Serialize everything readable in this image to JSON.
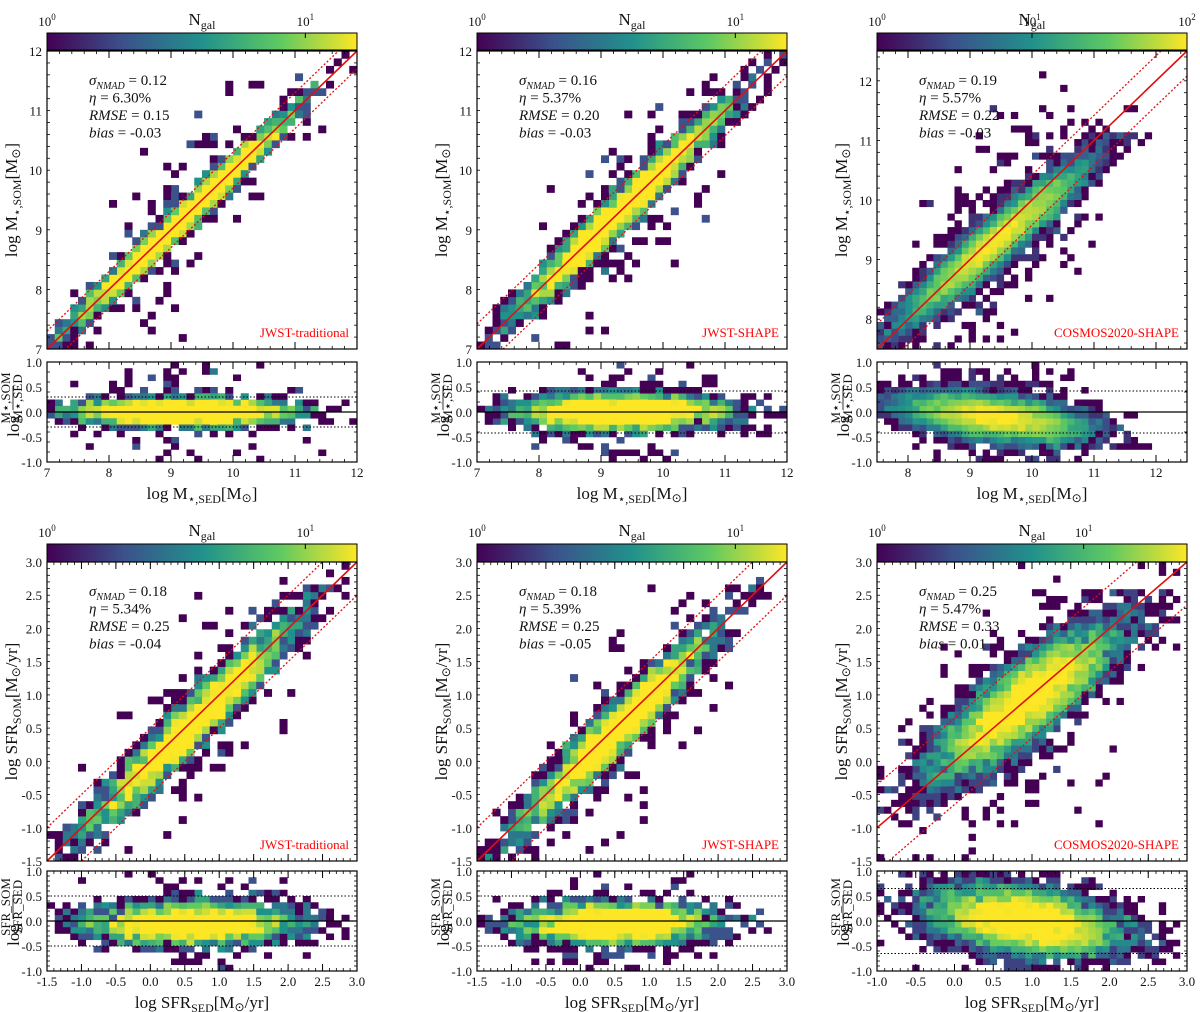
{
  "figure_title": "SOM vs SED comparison of stellar mass and SFR",
  "colors": {
    "one_to_one": "#e01010",
    "outlier_band": "#e01010",
    "reference_line": "#000000",
    "colormap": [
      "#440154",
      "#3b528b",
      "#21918c",
      "#5ec962",
      "#fde725"
    ],
    "label": "#ff0000"
  },
  "chart_data": [
    {
      "type": "heatmap",
      "quantity": "mass",
      "label": "JWST-traditional",
      "colorbar_title": "N_gal",
      "colorbar_ticks": [
        "10^0",
        "10^1"
      ],
      "colorbar_log_max": 1.2,
      "xlim": [
        7,
        12
      ],
      "ylim": [
        7,
        12
      ],
      "xticks": [
        7,
        8,
        9,
        10,
        11,
        12
      ],
      "yticks": [
        7,
        8,
        9,
        10,
        11,
        12
      ],
      "xlabel": "log M_{⋆,SED}[M_⊙]",
      "ylabel": "log M_{⋆,SOM}[M_⊙]",
      "resid_ylabel": "log M⋆,SOM / M⋆,SED",
      "resid_ylim": [
        -1.0,
        1.0
      ],
      "resid_yticks": [
        -1.0,
        -0.5,
        0.0,
        0.5,
        1.0
      ],
      "resid_band": 0.3,
      "outlier_band": 0.3,
      "stats": {
        "sigma_nmad": "0.12",
        "eta": "6.30%",
        "rmse": "0.15",
        "bias": "-0.03"
      },
      "sample": {
        "center": [
          9.2,
          9.2
        ],
        "spread": [
          0.85,
          0.8
        ],
        "scatter": 0.13,
        "slope": 1.0,
        "outlier_frac": 0.06,
        "seed": 11,
        "n": 2600,
        "bins": 40
      }
    },
    {
      "type": "heatmap",
      "quantity": "mass",
      "label": "JWST-SHAPE",
      "colorbar_title": "N_gal",
      "colorbar_ticks": [
        "10^0",
        "10^1"
      ],
      "colorbar_log_max": 1.2,
      "xlim": [
        7,
        12
      ],
      "ylim": [
        7,
        12
      ],
      "xticks": [
        7,
        8,
        9,
        10,
        11,
        12
      ],
      "yticks": [
        7,
        8,
        9,
        10,
        11,
        12
      ],
      "xlabel": "log M_{⋆,SED}[M_⊙]",
      "ylabel": "log M_{⋆,SOM}[M_⊙]",
      "resid_ylabel": "log M⋆,SOM / M⋆,SED",
      "resid_ylim": [
        -1.0,
        1.0
      ],
      "resid_yticks": [
        -1.0,
        -0.5,
        0.0,
        0.5,
        1.0
      ],
      "resid_band": 0.42,
      "outlier_band": 0.42,
      "stats": {
        "sigma_nmad": "0.16",
        "eta": "5.37%",
        "rmse": "0.20",
        "bias": "-0.03"
      },
      "sample": {
        "center": [
          9.3,
          9.3
        ],
        "spread": [
          0.85,
          0.8
        ],
        "scatter": 0.17,
        "slope": 1.0,
        "outlier_frac": 0.06,
        "seed": 23,
        "n": 2600,
        "bins": 40
      }
    },
    {
      "type": "heatmap",
      "quantity": "mass",
      "label": "COSMOS2020-SHAPE",
      "colorbar_title": "N_gal",
      "colorbar_ticks": [
        "10^0",
        "10^1",
        "10^2"
      ],
      "colorbar_log_max": 2.0,
      "xlim": [
        7.5,
        12.5
      ],
      "ylim": [
        7.5,
        12.5
      ],
      "xticks": [
        8,
        9,
        10,
        11,
        12
      ],
      "yticks": [
        8,
        9,
        10,
        11,
        12
      ],
      "xlabel": "log M_{⋆,SED}[M_⊙]",
      "ylabel": "log M_{⋆,SOM}[M_⊙]",
      "resid_ylabel": "log M⋆,SOM / M⋆,SED",
      "resid_ylim": [
        -1.0,
        1.0
      ],
      "resid_yticks": [
        -1.0,
        -0.5,
        0.0,
        0.5,
        1.0
      ],
      "resid_band": 0.42,
      "outlier_band": 0.42,
      "stats": {
        "sigma_nmad": "0.19",
        "eta": "5.57%",
        "rmse": "0.22",
        "bias": "-0.03"
      },
      "sample": {
        "center": [
          9.4,
          9.3
        ],
        "spread": [
          0.7,
          0.7
        ],
        "scatter": 0.2,
        "slope": 0.85,
        "outlier_frac": 0.06,
        "seed": 37,
        "n": 7000,
        "bins": 44
      }
    },
    {
      "type": "heatmap",
      "quantity": "sfr",
      "label": "JWST-traditional",
      "colorbar_title": "N_gal",
      "colorbar_ticks": [
        "10^0",
        "10^1"
      ],
      "colorbar_log_max": 1.2,
      "xlim": [
        -1.5,
        3.0
      ],
      "ylim": [
        -1.5,
        3.0
      ],
      "xticks": [
        -1.5,
        -1.0,
        -0.5,
        0.0,
        0.5,
        1.0,
        1.5,
        2.0,
        2.5,
        3.0
      ],
      "yticks": [
        -1.5,
        -1.0,
        -0.5,
        0.0,
        0.5,
        1.0,
        1.5,
        2.0,
        2.5,
        3.0
      ],
      "xlabel": "log SFR_{SED}[M_⊙/yr]",
      "ylabel": "log SFR_{SOM}[M_⊙/yr]",
      "resid_ylabel": "log SFR_SOM / SFR_SED",
      "resid_ylim": [
        -1.0,
        1.0
      ],
      "resid_yticks": [
        -1.0,
        -0.5,
        0.0,
        0.5,
        1.0
      ],
      "resid_band": 0.5,
      "outlier_band": 0.5,
      "stats": {
        "sigma_nmad": "0.18",
        "eta": "5.34%",
        "rmse": "0.25",
        "bias": "-0.04"
      },
      "sample": {
        "center": [
          0.6,
          0.55
        ],
        "spread": [
          0.75,
          0.7
        ],
        "scatter": 0.2,
        "slope": 1.0,
        "outlier_frac": 0.05,
        "seed": 51,
        "n": 2600,
        "bins": 40
      }
    },
    {
      "type": "heatmap",
      "quantity": "sfr",
      "label": "JWST-SHAPE",
      "colorbar_title": "N_gal",
      "colorbar_ticks": [
        "10^0",
        "10^1"
      ],
      "colorbar_log_max": 1.2,
      "xlim": [
        -1.5,
        3.0
      ],
      "ylim": [
        -1.5,
        3.0
      ],
      "xticks": [
        -1.5,
        -1.0,
        -0.5,
        0.0,
        0.5,
        1.0,
        1.5,
        2.0,
        2.5,
        3.0
      ],
      "yticks": [
        -1.5,
        -1.0,
        -0.5,
        0.0,
        0.5,
        1.0,
        1.5,
        2.0,
        2.5,
        3.0
      ],
      "xlabel": "log SFR_{SED}[M_⊙/yr]",
      "ylabel": "log SFR_{SOM}[M_⊙/yr]",
      "resid_ylabel": "log SFR_SOM / SFR_SED",
      "resid_ylim": [
        -1.0,
        1.0
      ],
      "resid_yticks": [
        -1.0,
        -0.5,
        0.0,
        0.5,
        1.0
      ],
      "resid_band": 0.5,
      "outlier_band": 0.5,
      "stats": {
        "sigma_nmad": "0.18",
        "eta": "5.39%",
        "rmse": "0.25",
        "bias": "-0.05"
      },
      "sample": {
        "center": [
          0.55,
          0.5
        ],
        "spread": [
          0.7,
          0.7
        ],
        "scatter": 0.2,
        "slope": 1.0,
        "outlier_frac": 0.05,
        "seed": 63,
        "n": 2600,
        "bins": 40
      }
    },
    {
      "type": "heatmap",
      "quantity": "sfr",
      "label": "COSMOS2020-SHAPE",
      "colorbar_title": "N_gal",
      "colorbar_ticks": [
        "10^0",
        "10^1"
      ],
      "colorbar_log_max": 1.5,
      "xlim": [
        -1.0,
        3.0
      ],
      "ylim": [
        -1.5,
        3.0
      ],
      "xticks": [
        -1.0,
        -0.5,
        0.0,
        0.5,
        1.0,
        1.5,
        2.0,
        2.5,
        3.0
      ],
      "yticks": [
        -1.5,
        -1.0,
        -0.5,
        0.0,
        0.5,
        1.0,
        1.5,
        2.0,
        2.5,
        3.0
      ],
      "xlabel": "log SFR_{SED}[M_⊙/yr]",
      "ylabel": "log SFR_{SOM}[M_⊙/yr]",
      "resid_ylabel": "log SFR_SOM / SFR_SED",
      "resid_ylim": [
        -1.0,
        1.0
      ],
      "resid_yticks": [
        -1.0,
        -0.5,
        0.0,
        0.5,
        1.0
      ],
      "resid_band": 0.65,
      "outlier_band": 0.65,
      "stats": {
        "sigma_nmad": "0.25",
        "eta": "5.47%",
        "rmse": "0.33",
        "bias": "0.01"
      },
      "sample": {
        "center": [
          0.9,
          0.9
        ],
        "spread": [
          0.6,
          0.55
        ],
        "scatter": 0.3,
        "slope": 0.8,
        "outlier_frac": 0.06,
        "seed": 79,
        "n": 6000,
        "bins": 44
      }
    }
  ]
}
